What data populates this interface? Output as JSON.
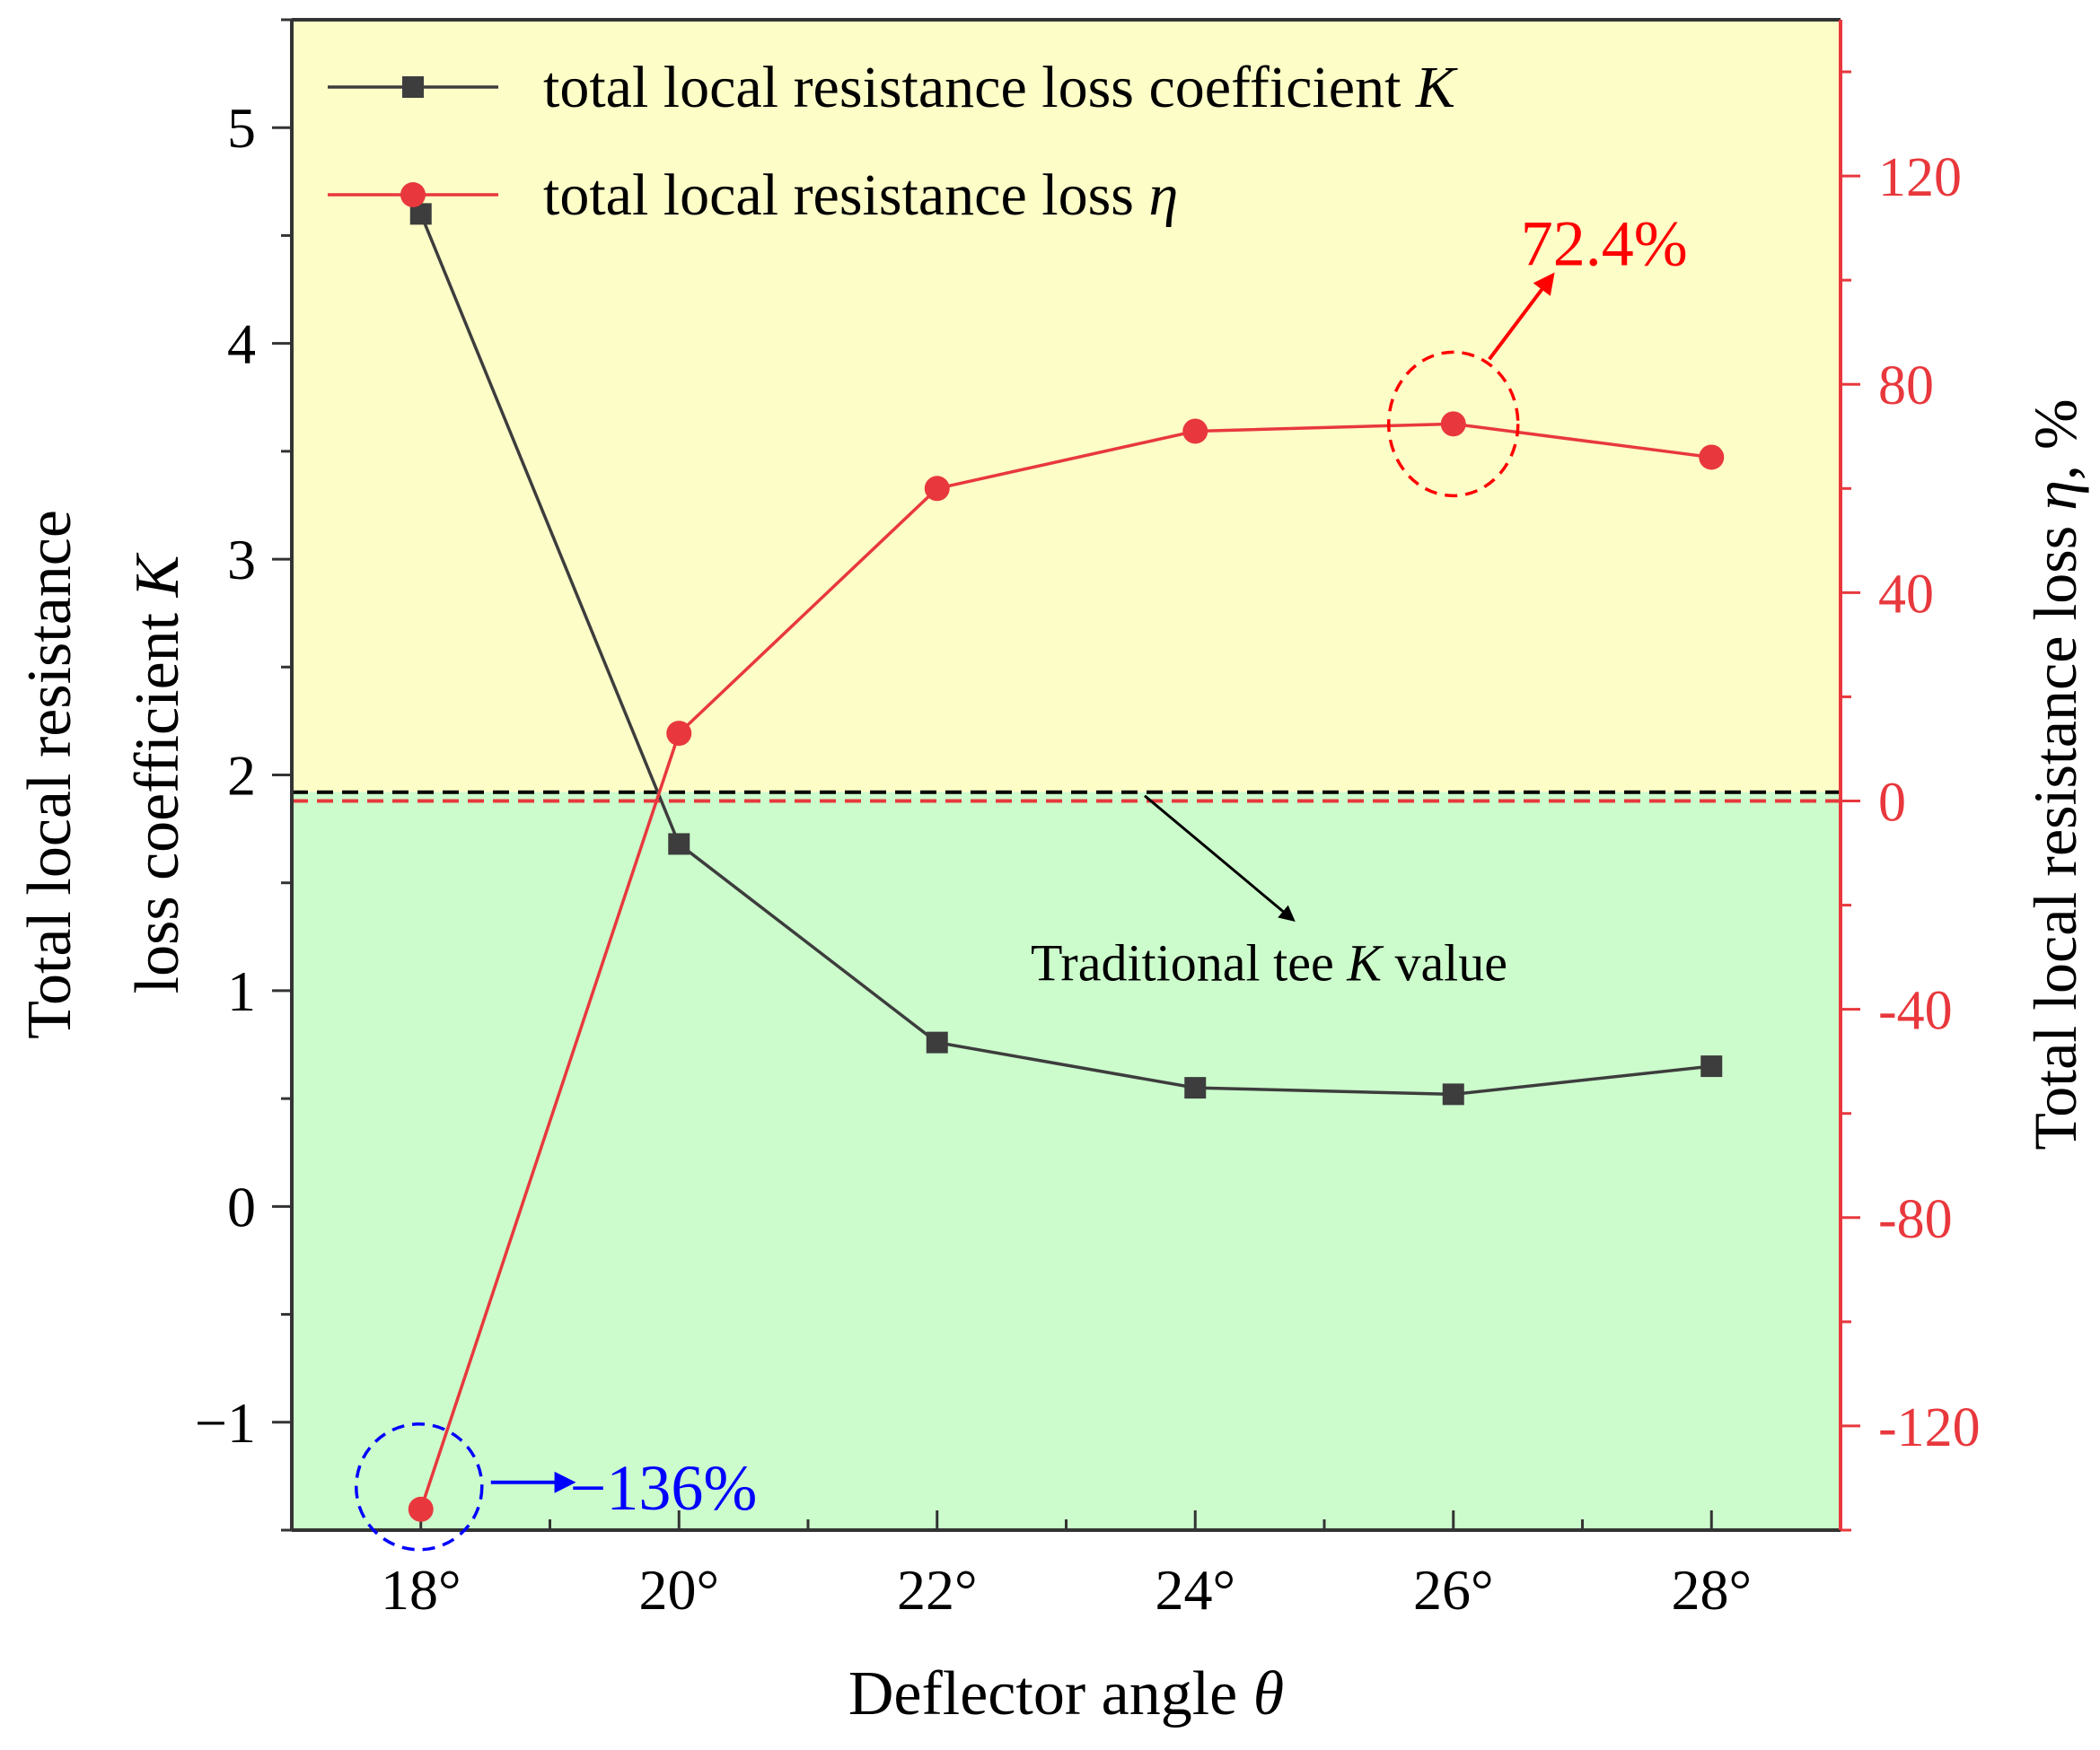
{
  "chart_data": {
    "type": "line",
    "x_label_prefix": "Deflector angle ",
    "x_label_symbol": "θ",
    "x": [
      18,
      20,
      22,
      24,
      26,
      28
    ],
    "x_tick_labels": [
      "18°",
      "20°",
      "22°",
      "24°",
      "26°",
      "28°"
    ],
    "xlim": [
      17,
      29
    ],
    "y_left": {
      "label_line1": "Total local resistance",
      "label_line2_prefix": "loss coefficient ",
      "label_line2_symbol": "K",
      "ylim": [
        -1.5,
        5.5
      ],
      "ticks": [
        5,
        4,
        3,
        2,
        1,
        0,
        -1
      ],
      "tick_labels": [
        "5",
        "4",
        "3",
        "2",
        "1",
        "0",
        "−1"
      ]
    },
    "y_right": {
      "label_prefix": "Total local resistance loss ",
      "label_symbol": "η",
      "label_suffix": ",  %",
      "ylim": [
        -140,
        150
      ],
      "ticks": [
        120,
        80,
        40,
        0,
        -40,
        -80,
        -120
      ],
      "tick_labels": [
        "120",
        "80",
        "40",
        "0",
        "-40",
        "-80",
        "-120"
      ],
      "color": "#e8383d"
    },
    "series": [
      {
        "name_prefix": "total local resistance loss coefficient ",
        "name_symbol": "K",
        "axis": "left",
        "marker": "square",
        "color": "#3d3d3d",
        "values": [
          4.6,
          1.68,
          0.76,
          0.55,
          0.52,
          0.65
        ]
      },
      {
        "name_prefix": "total local resistance loss ",
        "name_symbol": "η",
        "axis": "right",
        "marker": "circle",
        "color": "#e8383d",
        "values": [
          -136,
          13,
          60,
          71,
          72.4,
          66
        ]
      }
    ],
    "reference_lines": [
      {
        "axis": "left",
        "value": 1.92,
        "color": "#000000",
        "style": "dashed",
        "label_prefix": "Traditional tee ",
        "label_symbol": "K",
        "label_suffix": " value"
      },
      {
        "axis": "right",
        "value": 0,
        "color": "#e8383d",
        "style": "dashed"
      }
    ],
    "regions": [
      {
        "from_left": 1.92,
        "to_left": 5.5,
        "color": "#fdfdc8"
      },
      {
        "from_left": -1.5,
        "to_left": 1.92,
        "color": "#ccfccc"
      }
    ],
    "annotations": [
      {
        "text": "72.4%",
        "x": 26,
        "axis": "right",
        "y": 72.4,
        "color": "#ff0000"
      },
      {
        "text": "−136%",
        "x": 18,
        "axis": "right",
        "y": -136,
        "color": "#0000ff"
      }
    ],
    "legend_position": "top-left"
  }
}
